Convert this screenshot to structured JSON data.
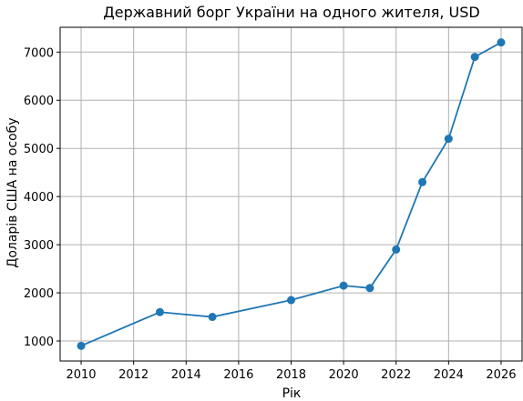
{
  "chart_data": {
    "type": "line",
    "title": "Державний борг України на одного жителя, USD",
    "xlabel": "Рік",
    "ylabel": "Доларів США на особу",
    "x": [
      2010,
      2013,
      2015,
      2018,
      2020,
      2021,
      2022,
      2023,
      2024,
      2025,
      2026
    ],
    "series": [
      {
        "values": [
          900,
          1600,
          1500,
          1850,
          2150,
          2100,
          2900,
          4300,
          5200,
          6900,
          7200
        ],
        "color": "#1f77b4",
        "marker": "circle"
      }
    ],
    "xlim": [
      2009.2,
      2026.8
    ],
    "ylim": [
      585,
      7515
    ],
    "xticks": [
      2010,
      2012,
      2014,
      2016,
      2018,
      2020,
      2022,
      2024,
      2026
    ],
    "yticks": [
      1000,
      2000,
      3000,
      4000,
      5000,
      6000,
      7000
    ],
    "grid": true,
    "legend": "none"
  }
}
